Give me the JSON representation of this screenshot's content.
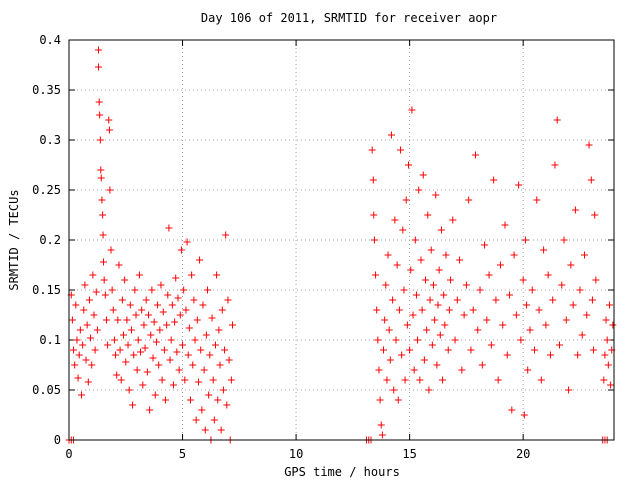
{
  "chart_data": {
    "type": "scatter",
    "title": "Day 106 of 2011, SRMTID for receiver aopr",
    "xlabel": "GPS time / hours",
    "ylabel": "SRMTID / TECUs",
    "xlim": [
      0,
      24
    ],
    "ylim": [
      0,
      0.4
    ],
    "xticks": [
      0,
      5,
      10,
      15,
      20
    ],
    "xtick_labels": [
      "0",
      "5",
      "10",
      "15",
      "20"
    ],
    "yticks": [
      0,
      0.05,
      0.1,
      0.15,
      0.2,
      0.25,
      0.3,
      0.35,
      0.4
    ],
    "ytick_labels": [
      "0",
      "0.05",
      "0.1",
      "0.15",
      "0.2",
      "0.25",
      "0.3",
      "0.35",
      "0.4"
    ],
    "grid": true,
    "marker": "+",
    "color": "#ff0000",
    "series": [
      {
        "points": [
          [
            0.0,
            0.0
          ],
          [
            0.1,
            0.0
          ],
          [
            0.2,
            0.0
          ],
          [
            0.1,
            0.145
          ],
          [
            0.15,
            0.12
          ],
          [
            0.2,
            0.09
          ],
          [
            0.25,
            0.075
          ],
          [
            0.3,
            0.135
          ],
          [
            0.35,
            0.1
          ],
          [
            0.4,
            0.062
          ],
          [
            0.45,
            0.085
          ],
          [
            0.5,
            0.11
          ],
          [
            0.55,
            0.045
          ],
          [
            0.6,
            0.095
          ],
          [
            0.65,
            0.13
          ],
          [
            0.7,
            0.155
          ],
          [
            0.75,
            0.08
          ],
          [
            0.8,
            0.115
          ],
          [
            0.85,
            0.058
          ],
          [
            0.9,
            0.14
          ],
          [
            0.95,
            0.102
          ],
          [
            1.0,
            0.075
          ],
          [
            1.05,
            0.165
          ],
          [
            1.1,
            0.125
          ],
          [
            1.15,
            0.09
          ],
          [
            1.2,
            0.148
          ],
          [
            1.25,
            0.11
          ],
          [
            1.3,
            0.39
          ],
          [
            1.3,
            0.373
          ],
          [
            1.33,
            0.338
          ],
          [
            1.35,
            0.325
          ],
          [
            1.38,
            0.3
          ],
          [
            1.4,
            0.27
          ],
          [
            1.42,
            0.262
          ],
          [
            1.45,
            0.24
          ],
          [
            1.48,
            0.225
          ],
          [
            1.5,
            0.205
          ],
          [
            1.52,
            0.178
          ],
          [
            1.55,
            0.16
          ],
          [
            1.6,
            0.145
          ],
          [
            1.65,
            0.12
          ],
          [
            1.7,
            0.095
          ],
          [
            1.75,
            0.32
          ],
          [
            1.78,
            0.31
          ],
          [
            1.8,
            0.25
          ],
          [
            1.85,
            0.19
          ],
          [
            1.9,
            0.15
          ],
          [
            1.95,
            0.13
          ],
          [
            2.0,
            0.1
          ],
          [
            2.05,
            0.085
          ],
          [
            2.1,
            0.065
          ],
          [
            2.15,
            0.12
          ],
          [
            2.2,
            0.175
          ],
          [
            2.25,
            0.09
          ],
          [
            2.3,
            0.06
          ],
          [
            2.35,
            0.14
          ],
          [
            2.4,
            0.105
          ],
          [
            2.45,
            0.16
          ],
          [
            2.5,
            0.078
          ],
          [
            2.55,
            0.12
          ],
          [
            2.6,
            0.095
          ],
          [
            2.65,
            0.05
          ],
          [
            2.7,
            0.135
          ],
          [
            2.75,
            0.11
          ],
          [
            2.8,
            0.035
          ],
          [
            2.85,
            0.085
          ],
          [
            2.9,
            0.15
          ],
          [
            2.95,
            0.125
          ],
          [
            3.0,
            0.07
          ],
          [
            3.05,
            0.1
          ],
          [
            3.1,
            0.165
          ],
          [
            3.15,
            0.088
          ],
          [
            3.2,
            0.13
          ],
          [
            3.25,
            0.055
          ],
          [
            3.3,
            0.115
          ],
          [
            3.35,
            0.092
          ],
          [
            3.4,
            0.14
          ],
          [
            3.45,
            0.068
          ],
          [
            3.5,
            0.125
          ],
          [
            3.55,
            0.03
          ],
          [
            3.6,
            0.105
          ],
          [
            3.65,
            0.15
          ],
          [
            3.7,
            0.082
          ],
          [
            3.75,
            0.118
          ],
          [
            3.8,
            0.045
          ],
          [
            3.85,
            0.098
          ],
          [
            3.9,
            0.135
          ],
          [
            3.95,
            0.075
          ],
          [
            4.0,
            0.11
          ],
          [
            4.05,
            0.155
          ],
          [
            4.1,
            0.06
          ],
          [
            4.15,
            0.128
          ],
          [
            4.2,
            0.09
          ],
          [
            4.25,
            0.04
          ],
          [
            4.3,
            0.115
          ],
          [
            4.35,
            0.145
          ],
          [
            4.4,
            0.212
          ],
          [
            4.45,
            0.08
          ],
          [
            4.5,
            0.1
          ],
          [
            4.55,
            0.135
          ],
          [
            4.6,
            0.055
          ],
          [
            4.65,
            0.118
          ],
          [
            4.7,
            0.162
          ],
          [
            4.75,
            0.088
          ],
          [
            4.8,
            0.142
          ],
          [
            4.85,
            0.07
          ],
          [
            4.9,
            0.125
          ],
          [
            4.95,
            0.19
          ],
          [
            5.0,
            0.095
          ],
          [
            5.05,
            0.15
          ],
          [
            5.1,
            0.06
          ],
          [
            5.15,
            0.13
          ],
          [
            5.2,
            0.198
          ],
          [
            5.25,
            0.085
          ],
          [
            5.3,
            0.112
          ],
          [
            5.35,
            0.04
          ],
          [
            5.4,
            0.165
          ],
          [
            5.45,
            0.075
          ],
          [
            5.5,
            0.14
          ],
          [
            5.55,
            0.1
          ],
          [
            5.6,
            0.02
          ],
          [
            5.65,
            0.12
          ],
          [
            5.7,
            0.058
          ],
          [
            5.75,
            0.18
          ],
          [
            5.8,
            0.09
          ],
          [
            5.85,
            0.03
          ],
          [
            5.9,
            0.135
          ],
          [
            5.95,
            0.07
          ],
          [
            6.0,
            0.01
          ],
          [
            6.05,
            0.105
          ],
          [
            6.1,
            0.15
          ],
          [
            6.15,
            0.045
          ],
          [
            6.2,
            0.085
          ],
          [
            6.25,
            0.0
          ],
          [
            6.3,
            0.122
          ],
          [
            6.35,
            0.06
          ],
          [
            6.4,
            0.02
          ],
          [
            6.45,
            0.095
          ],
          [
            6.5,
            0.165
          ],
          [
            6.55,
            0.04
          ],
          [
            6.6,
            0.11
          ],
          [
            6.65,
            0.075
          ],
          [
            6.7,
            0.01
          ],
          [
            6.75,
            0.13
          ],
          [
            6.8,
            0.05
          ],
          [
            6.85,
            0.09
          ],
          [
            6.9,
            0.205
          ],
          [
            6.95,
            0.035
          ],
          [
            7.0,
            0.14
          ],
          [
            7.05,
            0.08
          ],
          [
            7.1,
            0.0
          ],
          [
            7.15,
            0.06
          ],
          [
            7.2,
            0.115
          ],
          [
            13.1,
            0.0
          ],
          [
            13.2,
            0.0
          ],
          [
            13.3,
            0.0
          ],
          [
            13.35,
            0.29
          ],
          [
            13.4,
            0.26
          ],
          [
            13.42,
            0.225
          ],
          [
            13.45,
            0.2
          ],
          [
            13.5,
            0.165
          ],
          [
            13.55,
            0.13
          ],
          [
            13.6,
            0.1
          ],
          [
            13.65,
            0.07
          ],
          [
            13.7,
            0.04
          ],
          [
            13.75,
            0.015
          ],
          [
            13.8,
            0.005
          ],
          [
            13.85,
            0.09
          ],
          [
            13.9,
            0.12
          ],
          [
            13.95,
            0.155
          ],
          [
            14.0,
            0.06
          ],
          [
            14.05,
            0.185
          ],
          [
            14.1,
            0.11
          ],
          [
            14.15,
            0.08
          ],
          [
            14.2,
            0.305
          ],
          [
            14.25,
            0.14
          ],
          [
            14.3,
            0.05
          ],
          [
            14.35,
            0.22
          ],
          [
            14.4,
            0.1
          ],
          [
            14.45,
            0.175
          ],
          [
            14.5,
            0.04
          ],
          [
            14.55,
            0.13
          ],
          [
            14.6,
            0.29
          ],
          [
            14.65,
            0.085
          ],
          [
            14.7,
            0.21
          ],
          [
            14.75,
            0.15
          ],
          [
            14.8,
            0.06
          ],
          [
            14.85,
            0.24
          ],
          [
            14.9,
            0.115
          ],
          [
            14.95,
            0.275
          ],
          [
            15.0,
            0.09
          ],
          [
            15.05,
            0.17
          ],
          [
            15.1,
            0.33
          ],
          [
            15.15,
            0.125
          ],
          [
            15.2,
            0.07
          ],
          [
            15.25,
            0.2
          ],
          [
            15.3,
            0.145
          ],
          [
            15.35,
            0.1
          ],
          [
            15.4,
            0.25
          ],
          [
            15.45,
            0.06
          ],
          [
            15.5,
            0.18
          ],
          [
            15.55,
            0.13
          ],
          [
            15.6,
            0.265
          ],
          [
            15.65,
            0.08
          ],
          [
            15.7,
            0.16
          ],
          [
            15.75,
            0.11
          ],
          [
            15.8,
            0.225
          ],
          [
            15.85,
            0.05
          ],
          [
            15.9,
            0.14
          ],
          [
            15.95,
            0.19
          ],
          [
            16.0,
            0.095
          ],
          [
            16.05,
            0.155
          ],
          [
            16.1,
            0.12
          ],
          [
            16.15,
            0.245
          ],
          [
            16.2,
            0.075
          ],
          [
            16.25,
            0.135
          ],
          [
            16.3,
            0.17
          ],
          [
            16.35,
            0.105
          ],
          [
            16.4,
            0.21
          ],
          [
            16.45,
            0.06
          ],
          [
            16.5,
            0.145
          ],
          [
            16.55,
            0.115
          ],
          [
            16.6,
            0.185
          ],
          [
            16.7,
            0.09
          ],
          [
            16.75,
            0.13
          ],
          [
            16.8,
            0.16
          ],
          [
            16.9,
            0.22
          ],
          [
            17.0,
            0.1
          ],
          [
            17.1,
            0.14
          ],
          [
            17.2,
            0.18
          ],
          [
            17.3,
            0.07
          ],
          [
            17.4,
            0.125
          ],
          [
            17.5,
            0.155
          ],
          [
            17.6,
            0.24
          ],
          [
            17.7,
            0.09
          ],
          [
            17.8,
            0.13
          ],
          [
            17.9,
            0.285
          ],
          [
            18.0,
            0.11
          ],
          [
            18.1,
            0.15
          ],
          [
            18.2,
            0.075
          ],
          [
            18.3,
            0.195
          ],
          [
            18.4,
            0.12
          ],
          [
            18.5,
            0.165
          ],
          [
            18.6,
            0.095
          ],
          [
            18.7,
            0.26
          ],
          [
            18.8,
            0.14
          ],
          [
            18.9,
            0.06
          ],
          [
            19.0,
            0.175
          ],
          [
            19.1,
            0.115
          ],
          [
            19.2,
            0.215
          ],
          [
            19.3,
            0.085
          ],
          [
            19.4,
            0.145
          ],
          [
            19.5,
            0.03
          ],
          [
            19.6,
            0.185
          ],
          [
            19.7,
            0.125
          ],
          [
            19.8,
            0.255
          ],
          [
            19.9,
            0.1
          ],
          [
            20.0,
            0.16
          ],
          [
            20.05,
            0.025
          ],
          [
            20.1,
            0.2
          ],
          [
            20.15,
            0.135
          ],
          [
            20.2,
            0.07
          ],
          [
            20.3,
            0.11
          ],
          [
            20.4,
            0.15
          ],
          [
            20.5,
            0.09
          ],
          [
            20.6,
            0.24
          ],
          [
            20.7,
            0.13
          ],
          [
            20.8,
            0.06
          ],
          [
            20.9,
            0.19
          ],
          [
            21.0,
            0.115
          ],
          [
            21.1,
            0.165
          ],
          [
            21.2,
            0.085
          ],
          [
            21.3,
            0.14
          ],
          [
            21.4,
            0.275
          ],
          [
            21.5,
            0.32
          ],
          [
            21.6,
            0.095
          ],
          [
            21.7,
            0.155
          ],
          [
            21.8,
            0.2
          ],
          [
            21.9,
            0.12
          ],
          [
            22.0,
            0.05
          ],
          [
            22.1,
            0.175
          ],
          [
            22.2,
            0.135
          ],
          [
            22.3,
            0.23
          ],
          [
            22.4,
            0.085
          ],
          [
            22.5,
            0.15
          ],
          [
            22.6,
            0.105
          ],
          [
            22.7,
            0.185
          ],
          [
            22.8,
            0.125
          ],
          [
            22.9,
            0.295
          ],
          [
            23.0,
            0.26
          ],
          [
            23.05,
            0.14
          ],
          [
            23.1,
            0.09
          ],
          [
            23.15,
            0.225
          ],
          [
            23.2,
            0.16
          ],
          [
            23.5,
            0.0
          ],
          [
            23.6,
            0.0
          ],
          [
            23.7,
            0.0
          ],
          [
            23.55,
            0.06
          ],
          [
            23.6,
            0.085
          ],
          [
            23.65,
            0.12
          ],
          [
            23.7,
            0.1
          ],
          [
            23.75,
            0.075
          ],
          [
            23.8,
            0.135
          ],
          [
            23.85,
            0.055
          ],
          [
            23.9,
            0.09
          ],
          [
            23.95,
            0.115
          ]
        ]
      }
    ]
  }
}
